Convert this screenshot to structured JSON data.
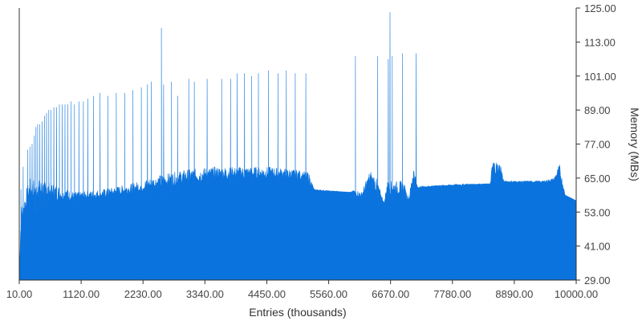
{
  "chart_data": {
    "type": "area",
    "xlabel": "Entries (thousands)",
    "ylabel": "Memory (MBs)",
    "xlim": [
      10,
      10000
    ],
    "ylim": [
      29,
      125
    ],
    "x_ticks": [
      "10.00",
      "1120.00",
      "2230.00",
      "3340.00",
      "4450.00",
      "5560.00",
      "6670.00",
      "7780.00",
      "8890.00",
      "10000.00"
    ],
    "y_ticks": [
      "29.00",
      "41.00",
      "53.00",
      "65.00",
      "77.00",
      "89.00",
      "101.00",
      "113.00",
      "125.00"
    ],
    "y_axis_position": "right",
    "grid": false,
    "legend": "none",
    "colors": {
      "fill": "#0b73dd",
      "axis": "#333333"
    },
    "series": [
      {
        "baseline": [
          [
            10,
            29
          ],
          [
            40,
            43
          ],
          [
            150,
            50
          ],
          [
            400,
            53
          ],
          [
            1000,
            55
          ],
          [
            2000,
            57
          ],
          [
            2500,
            58
          ],
          [
            3000,
            60
          ],
          [
            3500,
            61
          ],
          [
            4000,
            62
          ],
          [
            4500,
            62
          ],
          [
            5000,
            62
          ],
          [
            5200,
            61
          ],
          [
            5500,
            60
          ],
          [
            6000,
            60
          ],
          [
            6050,
            57
          ],
          [
            6400,
            56
          ],
          [
            6560,
            56
          ],
          [
            7000,
            56
          ],
          [
            7100,
            61
          ],
          [
            7500,
            62
          ],
          [
            8000,
            62
          ],
          [
            8500,
            63
          ],
          [
            9000,
            63
          ],
          [
            9700,
            63
          ],
          [
            9800,
            59
          ],
          [
            10000,
            57
          ]
        ],
        "band_tops": [
          [
            10,
            29
          ],
          [
            40,
            55
          ],
          [
            200,
            65
          ],
          [
            500,
            64
          ],
          [
            1000,
            60
          ],
          [
            1500,
            61
          ],
          [
            2000,
            63
          ],
          [
            2500,
            66
          ],
          [
            3000,
            68
          ],
          [
            3500,
            69
          ],
          [
            4000,
            69
          ],
          [
            4500,
            69
          ],
          [
            5000,
            68
          ],
          [
            5200,
            67
          ],
          [
            5300,
            61
          ],
          [
            5950,
            60
          ],
          [
            6050,
            61
          ],
          [
            6150,
            60
          ],
          [
            6300,
            68
          ],
          [
            6400,
            66
          ],
          [
            6560,
            56
          ],
          [
            6600,
            64
          ],
          [
            6900,
            64
          ],
          [
            7000,
            58
          ],
          [
            7080,
            70
          ],
          [
            7150,
            62
          ],
          [
            8000,
            63
          ],
          [
            8460,
            63
          ],
          [
            8500,
            72
          ],
          [
            8650,
            70
          ],
          [
            8700,
            64
          ],
          [
            9000,
            64
          ],
          [
            9400,
            64
          ],
          [
            9600,
            65
          ],
          [
            9700,
            70
          ],
          [
            9800,
            59
          ],
          [
            10000,
            57
          ]
        ],
        "peaks": [
          [
            40,
            61
          ],
          [
            80,
            69
          ],
          [
            120,
            55
          ],
          [
            160,
            75
          ],
          [
            200,
            76
          ],
          [
            240,
            77
          ],
          [
            280,
            80
          ],
          [
            310,
            83
          ],
          [
            340,
            84
          ],
          [
            380,
            84
          ],
          [
            420,
            85
          ],
          [
            460,
            87
          ],
          [
            500,
            88
          ],
          [
            540,
            89
          ],
          [
            580,
            89
          ],
          [
            630,
            90
          ],
          [
            680,
            90
          ],
          [
            730,
            91
          ],
          [
            780,
            91
          ],
          [
            830,
            91
          ],
          [
            880,
            91
          ],
          [
            940,
            92
          ],
          [
            1000,
            91
          ],
          [
            1080,
            92
          ],
          [
            1160,
            92
          ],
          [
            1240,
            93
          ],
          [
            1340,
            94
          ],
          [
            1460,
            95
          ],
          [
            1600,
            94
          ],
          [
            1750,
            95
          ],
          [
            1900,
            95
          ],
          [
            2050,
            96
          ],
          [
            2200,
            97
          ],
          [
            2310,
            98
          ],
          [
            2380,
            99
          ],
          [
            2560,
            118
          ],
          [
            2600,
            98
          ],
          [
            2740,
            99
          ],
          [
            2850,
            94
          ],
          [
            3050,
            100
          ],
          [
            3150,
            99
          ],
          [
            3380,
            100
          ],
          [
            3640,
            100
          ],
          [
            3800,
            100
          ],
          [
            3920,
            102
          ],
          [
            4050,
            102
          ],
          [
            4180,
            101
          ],
          [
            4300,
            102
          ],
          [
            4480,
            103
          ],
          [
            4650,
            102
          ],
          [
            4800,
            103
          ],
          [
            4960,
            102
          ],
          [
            5150,
            102
          ],
          [
            6040,
            108
          ],
          [
            6440,
            108
          ],
          [
            6630,
            107
          ],
          [
            6660,
            123.5
          ],
          [
            6700,
            108
          ],
          [
            6880,
            109
          ],
          [
            7130,
            109
          ]
        ]
      }
    ]
  }
}
